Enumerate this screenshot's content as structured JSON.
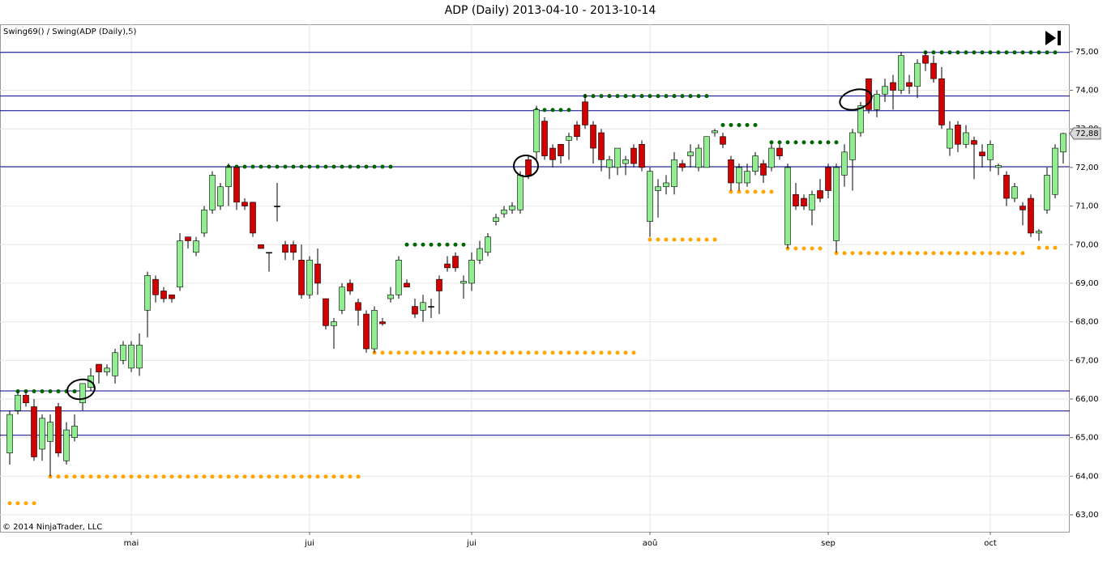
{
  "chart_data": {
    "type": "candlestick",
    "title": "ADP (Daily)  2013-04-10 - 2013-10-14",
    "indicator_label": "Swing69() / Swing(ADP (Daily),5)",
    "copyright": "© 2014 NinjaTrader, LLC",
    "categories": [
      null,
      null,
      null,
      null,
      null,
      null,
      null,
      null,
      null,
      null,
      null,
      null,
      null,
      null,
      null,
      "mai",
      null,
      null,
      null,
      null,
      null,
      null,
      null,
      null,
      null,
      null,
      null,
      null,
      null,
      null,
      null,
      null,
      null,
      null,
      null,
      null,
      null,
      "jui",
      null,
      null,
      null,
      null,
      null,
      null,
      null,
      null,
      null,
      null,
      null,
      null,
      null,
      null,
      null,
      null,
      null,
      null,
      null,
      "jui",
      null,
      null,
      null,
      null,
      null,
      null,
      null,
      null,
      null,
      null,
      null,
      null,
      null,
      null,
      null,
      null,
      null,
      null,
      null,
      null,
      null,
      "aoû",
      null,
      null,
      null,
      null,
      null,
      null,
      null,
      null,
      null,
      null,
      null,
      null,
      null,
      null,
      null,
      null,
      null,
      null,
      null,
      null,
      null,
      "sep",
      null,
      null,
      null,
      null,
      null,
      null,
      null,
      null,
      null,
      null,
      null,
      null,
      null,
      null,
      null,
      null,
      null,
      null,
      null,
      "oct",
      null,
      null,
      null,
      null,
      null,
      null,
      null,
      null,
      null
    ],
    "open": [
      64.6,
      65.7,
      66.1,
      65.8,
      64.7,
      64.9,
      65.8,
      64.4,
      65.0,
      65.9,
      66.3,
      66.9,
      66.7,
      66.6,
      67.0,
      66.8,
      66.8,
      68.3,
      69.1,
      68.8,
      68.7,
      68.9,
      70.2,
      69.8,
      70.3,
      70.9,
      71.0,
      71.5,
      72.0,
      71.1,
      71.1,
      70.0,
      69.8,
      71.0,
      70.0,
      70.0,
      69.6,
      68.7,
      69.5,
      68.6,
      67.9,
      68.3,
      69.0,
      68.5,
      68.2,
      67.3,
      68.0,
      68.6,
      68.7,
      69.0,
      68.4,
      68.3,
      68.4,
      69.1,
      69.5,
      69.7,
      69.0,
      69.0,
      69.6,
      69.8,
      70.6,
      70.8,
      70.9,
      70.9,
      72.2,
      72.4,
      73.2,
      72.5,
      72.6,
      72.7,
      73.1,
      73.7,
      73.1,
      72.9,
      72.0,
      72.0,
      72.1,
      72.5,
      72.6,
      70.6,
      71.4,
      71.5,
      71.5,
      72.1,
      72.3,
      72.0,
      72.0,
      72.9,
      72.8,
      72.2,
      71.6,
      71.6,
      71.9,
      72.1,
      72.0,
      72.5,
      70.0,
      71.3,
      71.2,
      70.9,
      71.4,
      72.0,
      70.1,
      71.8,
      72.2,
      72.9,
      74.3,
      73.5,
      73.9,
      74.2,
      74.0,
      74.2,
      74.1,
      74.9,
      74.7,
      74.3,
      72.5,
      73.1,
      72.6,
      72.7,
      72.4,
      72.2,
      72.0,
      71.8,
      71.2,
      71.0,
      71.2,
      70.3,
      70.9,
      71.3,
      72.4
    ],
    "high": [
      65.7,
      66.2,
      66.2,
      66.0,
      65.6,
      65.6,
      65.9,
      65.4,
      65.6,
      66.4,
      66.8,
      66.9,
      66.9,
      67.3,
      67.5,
      67.5,
      67.7,
      69.3,
      69.2,
      68.9,
      68.7,
      70.3,
      70.2,
      70.2,
      71.0,
      71.9,
      71.6,
      72.1,
      72.0,
      71.2,
      71.1,
      70.0,
      69.8,
      71.6,
      70.1,
      70.1,
      70.0,
      69.7,
      69.9,
      68.6,
      68.1,
      69.0,
      69.1,
      68.6,
      68.3,
      68.4,
      68.1,
      68.9,
      69.7,
      69.1,
      68.6,
      68.7,
      68.6,
      69.2,
      69.7,
      69.8,
      69.2,
      69.8,
      70.1,
      70.3,
      70.8,
      71.0,
      71.1,
      71.9,
      72.3,
      73.6,
      73.3,
      72.6,
      72.6,
      72.9,
      73.2,
      73.9,
      73.2,
      73.0,
      72.3,
      72.5,
      72.3,
      72.6,
      72.7,
      72.0,
      71.7,
      71.8,
      72.4,
      72.2,
      72.6,
      72.6,
      72.8,
      73.0,
      72.9,
      72.3,
      72.1,
      72.1,
      72.4,
      72.2,
      72.6,
      72.6,
      72.1,
      71.6,
      71.3,
      71.4,
      71.7,
      72.1,
      72.1,
      72.6,
      73.0,
      73.7,
      74.3,
      74.0,
      74.3,
      74.4,
      75.0,
      74.4,
      74.8,
      75.0,
      74.9,
      74.6,
      73.2,
      73.2,
      73.1,
      72.8,
      72.6,
      72.7,
      72.1,
      71.9,
      71.6,
      71.1,
      71.3,
      70.4,
      72.0,
      72.6,
      72.9
    ],
    "low": [
      64.3,
      65.6,
      65.8,
      64.4,
      64.4,
      64.0,
      64.5,
      64.3,
      64.9,
      65.7,
      66.2,
      66.4,
      66.6,
      66.4,
      66.9,
      66.7,
      66.6,
      67.6,
      68.5,
      68.5,
      68.5,
      68.8,
      69.9,
      69.7,
      70.2,
      70.8,
      70.9,
      71.0,
      70.9,
      70.9,
      70.2,
      69.9,
      69.3,
      70.6,
      69.6,
      69.6,
      68.6,
      68.6,
      68.7,
      67.8,
      67.3,
      68.2,
      68.7,
      67.9,
      67.2,
      67.2,
      67.9,
      68.5,
      68.6,
      68.9,
      68.1,
      68.0,
      68.1,
      68.2,
      69.3,
      69.3,
      68.6,
      68.8,
      69.5,
      69.7,
      70.5,
      70.7,
      70.8,
      70.8,
      71.7,
      72.2,
      72.2,
      72.0,
      72.1,
      72.2,
      72.7,
      73.0,
      72.1,
      71.9,
      71.7,
      71.8,
      71.8,
      72.0,
      71.9,
      70.2,
      70.7,
      71.3,
      71.3,
      71.9,
      72.0,
      71.9,
      72.0,
      72.8,
      72.5,
      71.4,
      71.4,
      71.5,
      71.8,
      71.6,
      71.9,
      72.2,
      69.9,
      70.9,
      70.9,
      70.5,
      71.1,
      71.2,
      69.8,
      71.5,
      71.4,
      72.8,
      73.4,
      73.3,
      73.7,
      73.5,
      73.9,
      73.9,
      73.8,
      74.5,
      74.2,
      73.0,
      72.3,
      72.4,
      72.5,
      71.7,
      72.0,
      71.9,
      71.8,
      71.0,
      71.1,
      70.5,
      70.2,
      70.1,
      70.8,
      71.2,
      72.1
    ],
    "close": [
      65.6,
      66.1,
      65.9,
      64.5,
      65.5,
      65.4,
      64.6,
      65.2,
      65.3,
      66.4,
      66.6,
      66.7,
      66.8,
      67.2,
      67.4,
      67.4,
      67.4,
      69.2,
      68.7,
      68.6,
      68.6,
      70.1,
      70.1,
      70.1,
      70.9,
      71.8,
      71.5,
      72.0,
      71.1,
      71.0,
      70.3,
      69.9,
      69.8,
      71.0,
      69.8,
      69.8,
      68.7,
      69.6,
      69.0,
      67.9,
      68.0,
      68.9,
      68.8,
      68.3,
      67.3,
      68.3,
      67.95,
      68.7,
      69.6,
      68.9,
      68.2,
      68.5,
      68.4,
      68.8,
      69.4,
      69.4,
      69.05,
      69.6,
      69.9,
      70.2,
      70.7,
      70.9,
      71.0,
      71.8,
      71.8,
      73.5,
      72.3,
      72.2,
      72.3,
      72.8,
      72.8,
      73.1,
      72.5,
      72.2,
      72.2,
      72.5,
      72.2,
      72.1,
      72.0,
      71.9,
      71.5,
      71.6,
      72.2,
      72.0,
      72.4,
      72.5,
      72.8,
      72.95,
      72.6,
      71.6,
      72.0,
      71.9,
      72.3,
      71.8,
      72.5,
      72.3,
      72.0,
      71.0,
      71.0,
      71.3,
      71.2,
      71.4,
      72.0,
      72.4,
      72.9,
      73.6,
      73.5,
      73.9,
      74.1,
      74.0,
      74.9,
      74.1,
      74.7,
      74.7,
      74.3,
      73.1,
      73.0,
      72.6,
      72.9,
      72.6,
      72.3,
      72.6,
      72.05,
      71.2,
      71.5,
      70.9,
      70.3,
      70.35,
      71.8,
      72.5,
      72.88
    ],
    "up_color": "#90ee90",
    "down_color": "#d40000",
    "last_price": {
      "value": 72.88,
      "label": "72,88"
    },
    "swing_high_color": "#006400",
    "swing_low_color": "#ffa500",
    "swing_high": [
      {
        "from": 1,
        "to": 9,
        "value": 66.2
      },
      {
        "from": 27,
        "to": 48,
        "value": 72.02
      },
      {
        "from": 49,
        "to": 57,
        "value": 70.0
      },
      {
        "from": 65,
        "to": 70,
        "value": 73.49
      },
      {
        "from": 71,
        "to": 87,
        "value": 73.85
      },
      {
        "from": 88,
        "to": 93,
        "value": 73.1
      },
      {
        "from": 94,
        "to": 103,
        "value": 72.65
      },
      {
        "from": 113,
        "to": 130,
        "value": 74.98
      }
    ],
    "swing_low": [
      {
        "from": 0,
        "to": 4,
        "value": 63.3
      },
      {
        "from": 5,
        "to": 44,
        "value": 63.99
      },
      {
        "from": 45,
        "to": 78,
        "value": 67.2
      },
      {
        "from": 79,
        "to": 88,
        "value": 70.13
      },
      {
        "from": 89,
        "to": 95,
        "value": 71.37
      },
      {
        "from": 96,
        "to": 101,
        "value": 69.9
      },
      {
        "from": 102,
        "to": 126,
        "value": 69.78
      },
      {
        "from": 127,
        "to": 130,
        "value": 69.92
      }
    ],
    "horizontal_lines": [
      74.98,
      73.85,
      73.47,
      72.02,
      66.21,
      65.69,
      65.06
    ],
    "horizontal_line_color": "#00008b",
    "ylim": [
      62.56,
      75.71
    ],
    "yticks": [
      {
        "value": 63,
        "label": "63,00"
      },
      {
        "value": 64,
        "label": "64,00"
      },
      {
        "value": 65,
        "label": "65,00"
      },
      {
        "value": 66,
        "label": "66,00"
      },
      {
        "value": 67,
        "label": "67,00"
      },
      {
        "value": 68,
        "label": "68,00"
      },
      {
        "value": 69,
        "label": "69,00"
      },
      {
        "value": 70,
        "label": "70,00"
      },
      {
        "value": 71,
        "label": "71,00"
      },
      {
        "value": 72,
        "label": "72,00"
      },
      {
        "value": 73,
        "label": "73,00"
      },
      {
        "value": 74,
        "label": "74,00"
      },
      {
        "value": 75,
        "label": "75,00"
      }
    ],
    "grid": true
  }
}
